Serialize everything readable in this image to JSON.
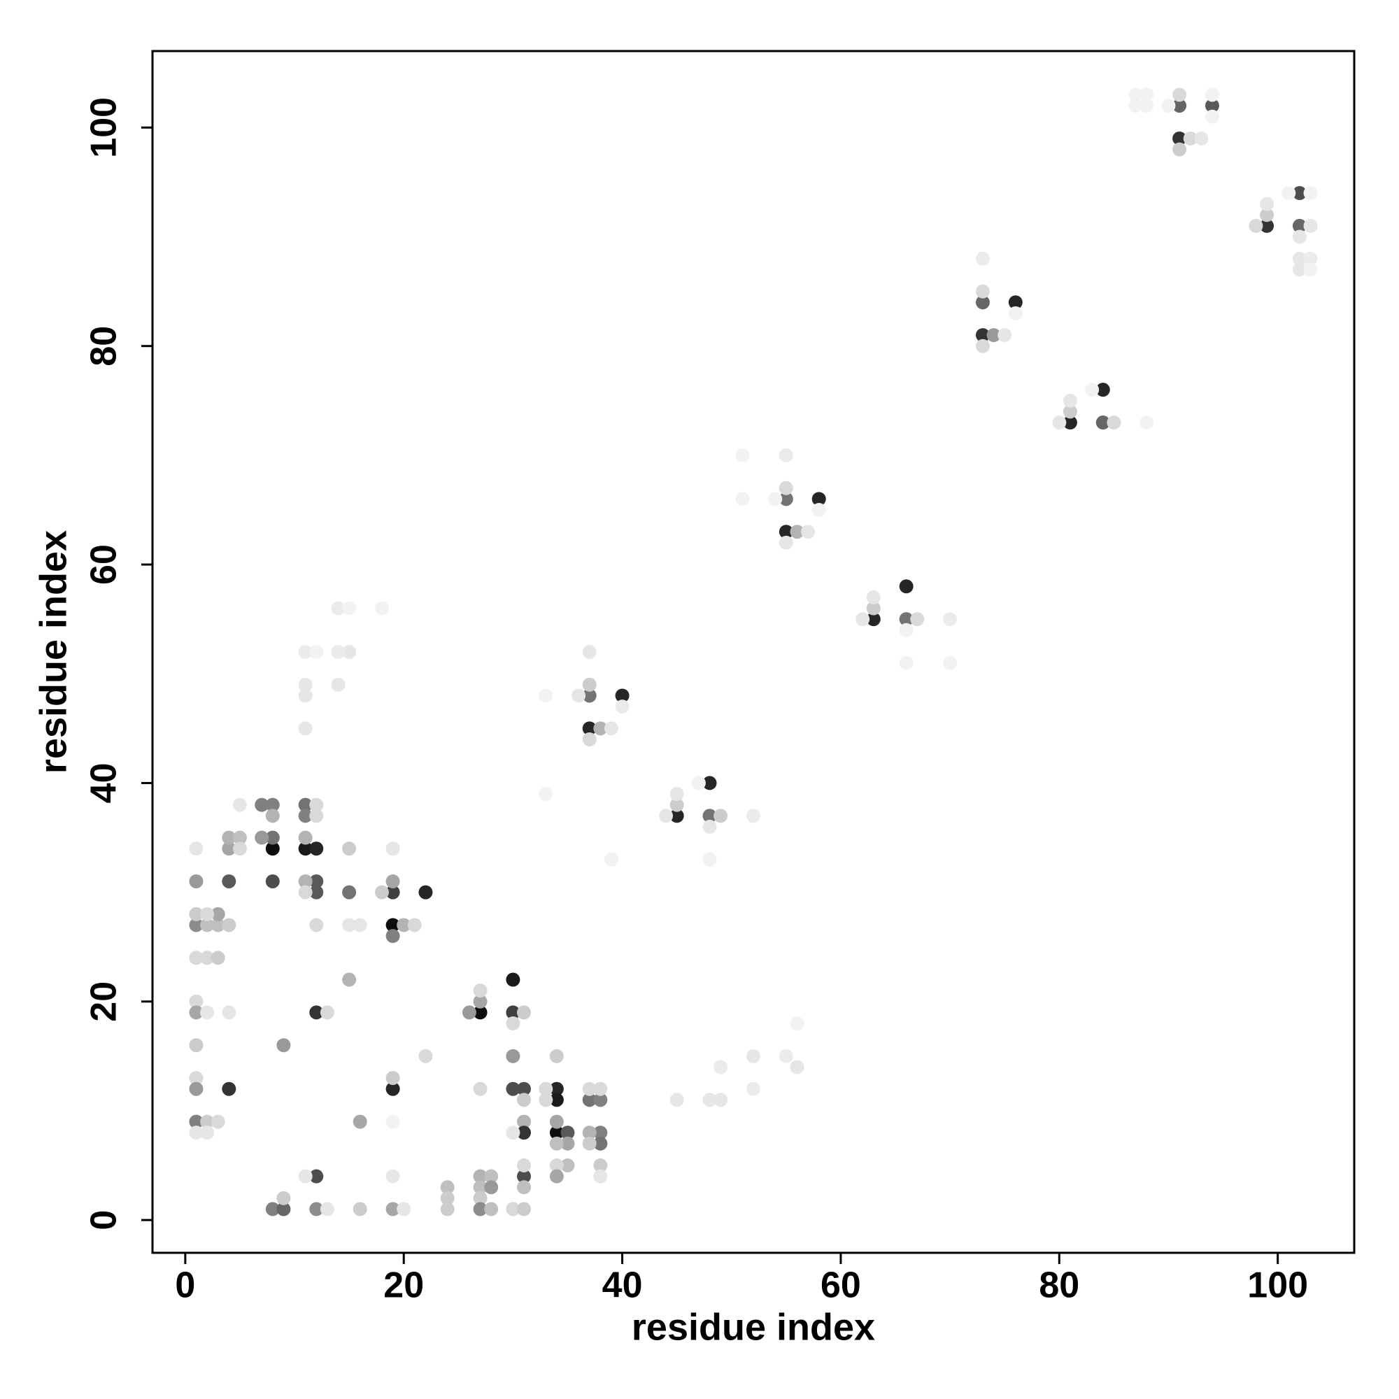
{
  "chart_data": {
    "type": "scatter",
    "xlabel": "residue index",
    "ylabel": "residue index",
    "xlim": [
      -3,
      107
    ],
    "ylim": [
      -3,
      107
    ],
    "xticks": [
      0,
      20,
      40,
      60,
      80,
      100
    ],
    "yticks": [
      0,
      20,
      40,
      60,
      80,
      100
    ],
    "grid": false,
    "color": "#000000",
    "x": [
      91,
      94,
      91,
      92,
      93,
      91,
      91,
      87,
      88,
      87,
      88,
      90,
      94,
      94,
      102,
      99,
      102,
      98,
      103,
      99,
      99,
      101,
      103,
      102,
      102,
      103,
      102,
      103,
      73,
      76,
      73,
      74,
      75,
      73,
      73,
      73,
      76,
      84,
      81,
      84,
      80,
      81,
      81,
      83,
      85,
      88,
      55,
      58,
      55,
      56,
      57,
      55,
      55,
      55,
      51,
      54,
      51,
      58,
      66,
      63,
      66,
      67,
      62,
      63,
      63,
      70,
      70,
      66,
      66,
      37,
      40,
      37,
      38,
      39,
      37,
      37,
      37,
      36,
      33,
      40,
      48,
      45,
      48,
      49,
      44,
      45,
      45,
      52,
      47,
      48,
      48,
      33,
      39,
      8,
      11,
      12,
      8,
      8,
      8,
      7,
      7,
      8,
      11,
      11,
      11,
      12,
      12,
      12,
      12,
      11,
      11,
      15,
      15,
      19,
      22,
      19,
      18,
      19,
      19,
      20,
      21,
      19,
      4,
      4,
      4,
      5,
      5,
      5,
      1,
      1,
      1,
      2,
      3,
      3,
      4,
      2,
      1,
      1,
      2,
      3,
      1,
      1,
      2,
      4,
      1,
      1,
      1,
      4,
      1,
      2,
      3,
      1,
      2,
      9,
      12,
      13,
      15,
      15,
      16,
      12,
      16,
      19,
      19,
      19,
      22,
      12,
      11,
      8,
      9,
      9,
      12,
      13,
      16,
      19,
      20,
      19,
      24,
      24,
      24,
      27,
      26,
      27,
      27,
      30,
      30,
      31,
      30,
      30,
      30,
      31,
      31,
      31,
      31,
      30,
      34,
      34,
      34,
      35,
      34,
      34,
      35,
      34,
      35,
      34,
      34,
      31,
      31,
      31,
      27,
      27,
      28,
      27,
      28,
      27,
      27,
      28,
      30,
      31,
      37,
      38,
      37,
      38,
      38,
      37,
      38,
      37,
      38,
      38,
      33,
      33,
      45,
      48,
      49,
      49,
      52,
      52,
      55,
      56,
      56,
      11,
      11,
      11,
      11,
      12,
      14,
      15,
      15,
      14,
      14,
      18
    ],
    "y": [
      102,
      102,
      99,
      99,
      99,
      98,
      103,
      103,
      103,
      102,
      102,
      102,
      103,
      101,
      94,
      91,
      91,
      91,
      91,
      92,
      93,
      94,
      94,
      90,
      88,
      88,
      87,
      87,
      84,
      84,
      81,
      81,
      81,
      85,
      88,
      80,
      83,
      76,
      73,
      73,
      73,
      74,
      75,
      76,
      73,
      73,
      66,
      66,
      63,
      63,
      63,
      67,
      70,
      62,
      66,
      66,
      70,
      65,
      58,
      55,
      55,
      55,
      55,
      56,
      57,
      55,
      51,
      51,
      54,
      48,
      48,
      45,
      45,
      45,
      49,
      52,
      44,
      48,
      48,
      47,
      40,
      37,
      37,
      37,
      37,
      38,
      39,
      37,
      40,
      36,
      33,
      39,
      33,
      34,
      34,
      34,
      31,
      35,
      38,
      38,
      35,
      37,
      38,
      37,
      35,
      38,
      37,
      31,
      30,
      31,
      30,
      34,
      30,
      30,
      30,
      31,
      30,
      27,
      26,
      27,
      27,
      34,
      31,
      34,
      35,
      35,
      34,
      38,
      31,
      27,
      28,
      27,
      27,
      28,
      27,
      28,
      34,
      24,
      24,
      24,
      20,
      19,
      19,
      19,
      16,
      13,
      12,
      12,
      9,
      9,
      9,
      8,
      8,
      16,
      19,
      19,
      22,
      27,
      27,
      27,
      9,
      12,
      13,
      9,
      15,
      4,
      4,
      1,
      1,
      2,
      1,
      1,
      1,
      1,
      1,
      4,
      3,
      2,
      1,
      19,
      19,
      20,
      21,
      22,
      19,
      19,
      18,
      15,
      12,
      12,
      11,
      9,
      8,
      8,
      12,
      11,
      8,
      8,
      15,
      9,
      7,
      7,
      5,
      5,
      4,
      4,
      3,
      5,
      12,
      4,
      4,
      3,
      3,
      2,
      1,
      1,
      1,
      1,
      11,
      11,
      12,
      12,
      8,
      8,
      7,
      7,
      5,
      4,
      11,
      12,
      11,
      11,
      11,
      14,
      15,
      12,
      15,
      14,
      18,
      49,
      48,
      45,
      52,
      52,
      56,
      56,
      52,
      52,
      49,
      56
    ],
    "values": [
      0.6,
      0.65,
      0.8,
      0.15,
      0.1,
      0.2,
      0.15,
      0.05,
      0.05,
      0.05,
      0.05,
      0.05,
      0.05,
      0.05,
      0.7,
      0.8,
      0.6,
      0.15,
      0.1,
      0.2,
      0.1,
      0.05,
      0.05,
      0.1,
      0.1,
      0.08,
      0.1,
      0.05,
      0.6,
      0.85,
      0.8,
      0.4,
      0.1,
      0.15,
      0.08,
      0.15,
      0.05,
      0.85,
      0.85,
      0.6,
      0.1,
      0.2,
      0.1,
      0.05,
      0.15,
      0.05,
      0.55,
      0.85,
      0.85,
      0.3,
      0.1,
      0.15,
      0.08,
      0.1,
      0.05,
      0.05,
      0.05,
      0.05,
      0.85,
      0.85,
      0.55,
      0.15,
      0.1,
      0.2,
      0.1,
      0.08,
      0.05,
      0.05,
      0.05,
      0.55,
      0.85,
      0.85,
      0.3,
      0.1,
      0.2,
      0.1,
      0.15,
      0.1,
      0.05,
      0.08,
      0.85,
      0.85,
      0.55,
      0.2,
      0.1,
      0.2,
      0.1,
      0.08,
      0.05,
      0.1,
      0.05,
      0.05,
      0.05,
      0.95,
      0.9,
      0.85,
      0.7,
      0.55,
      0.5,
      0.5,
      0.4,
      0.3,
      0.55,
      0.5,
      0.3,
      0.15,
      0.15,
      0.65,
      0.65,
      0.3,
      0.15,
      0.2,
      0.55,
      0.75,
      0.85,
      0.35,
      0.2,
      0.95,
      0.5,
      0.3,
      0.15,
      0.1,
      0.65,
      0.35,
      0.3,
      0.25,
      0.15,
      0.1,
      0.4,
      0.45,
      0.2,
      0.25,
      0.25,
      0.35,
      0.2,
      0.15,
      0.1,
      0.15,
      0.15,
      0.2,
      0.15,
      0.35,
      0.1,
      0.1,
      0.2,
      0.15,
      0.4,
      0.8,
      0.5,
      0.2,
      0.15,
      0.1,
      0.1,
      0.4,
      0.8,
      0.15,
      0.3,
      0.1,
      0.1,
      0.15,
      0.35,
      0.85,
      0.2,
      0.05,
      0.15,
      0.7,
      0.1,
      0.5,
      0.6,
      0.2,
      0.45,
      0.1,
      0.2,
      0.35,
      0.1,
      0.1,
      0.25,
      0.2,
      0.2,
      0.95,
      0.4,
      0.35,
      0.15,
      0.9,
      0.75,
      0.2,
      0.15,
      0.4,
      0.7,
      0.7,
      0.2,
      0.3,
      0.8,
      0.1,
      0.85,
      0.9,
      0.95,
      0.65,
      0.2,
      0.35,
      0.35,
      0.25,
      0.25,
      0.15,
      0.35,
      0.7,
      0.25,
      0.15,
      0.15,
      0.3,
      0.25,
      0.25,
      0.4,
      0.2,
      0.45,
      0.25,
      0.15,
      0.2,
      0.55,
      0.5,
      0.15,
      0.15,
      0.5,
      0.3,
      0.55,
      0.2,
      0.2,
      0.1,
      0.15,
      0.15,
      0.1,
      0.1,
      0.1,
      0.08,
      0.1,
      0.08,
      0.08,
      0.1,
      0.05,
      0.1,
      0.1,
      0.1,
      0.08,
      0.05,
      0.08,
      0.05,
      0.1,
      0.08,
      0.1,
      0.05
    ]
  }
}
